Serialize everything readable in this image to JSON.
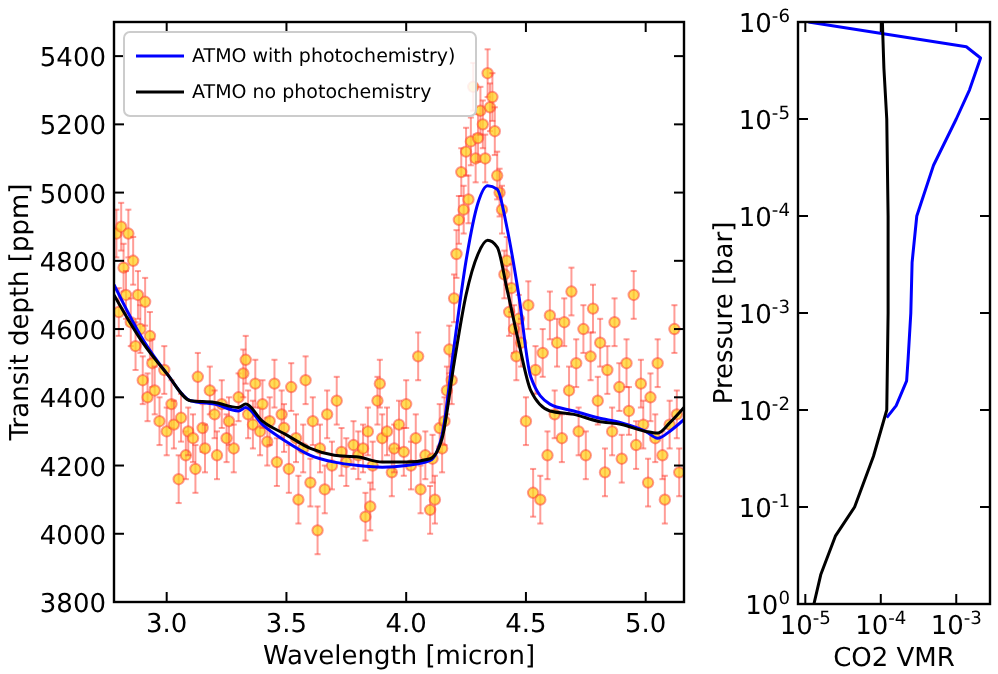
{
  "chart_data": [
    {
      "type": "line",
      "xlabel": "Wavelength [micron]",
      "ylabel": "Transit depth [ppm]",
      "xlim": [
        2.78,
        5.16
      ],
      "ylim": [
        3800,
        5500
      ],
      "xticks": [
        {
          "value": 3,
          "label": "3.0"
        },
        {
          "value": 3.5,
          "label": "3.5"
        },
        {
          "value": 4,
          "label": "4.0"
        },
        {
          "value": 4.5,
          "label": "4.5"
        },
        {
          "value": 5,
          "label": "5.0"
        }
      ],
      "yticks": [
        3800,
        4000,
        4200,
        4400,
        4600,
        4800,
        5000,
        5200,
        5400
      ],
      "grid": false,
      "legend": "top left",
      "line_style": "solid",
      "series": [
        {
          "type": "scatter",
          "color": "#ff3b30",
          "marker": "circle",
          "x": [
            2.79,
            2.8,
            2.81,
            2.82,
            2.83,
            2.84,
            2.85,
            2.86,
            2.87,
            2.88,
            2.89,
            2.9,
            2.91,
            2.92,
            2.93,
            2.94,
            2.95,
            2.97,
            2.99,
            3.0,
            3.02,
            3.03,
            3.05,
            3.06,
            3.08,
            3.09,
            3.11,
            3.12,
            3.13,
            3.15,
            3.16,
            3.18,
            3.2,
            3.21,
            3.23,
            3.25,
            3.26,
            3.28,
            3.3,
            3.32,
            3.33,
            3.34,
            3.36,
            3.37,
            3.39,
            3.4,
            3.42,
            3.43,
            3.45,
            3.46,
            3.48,
            3.49,
            3.51,
            3.52,
            3.54,
            3.55,
            3.57,
            3.58,
            3.6,
            3.61,
            3.63,
            3.64,
            3.66,
            3.67,
            3.69,
            3.71,
            3.73,
            3.75,
            3.78,
            3.8,
            3.82,
            3.83,
            3.84,
            3.85,
            3.86,
            3.88,
            3.89,
            3.9,
            3.92,
            3.94,
            3.95,
            3.97,
            3.99,
            4.0,
            4.02,
            4.04,
            4.05,
            4.06,
            4.08,
            4.1,
            4.11,
            4.12,
            4.14,
            4.15,
            4.16,
            4.17,
            4.18,
            4.19,
            4.2,
            4.21,
            4.22,
            4.23,
            4.24,
            4.25,
            4.26,
            4.27,
            4.28,
            4.29,
            4.3,
            4.31,
            4.32,
            4.33,
            4.34,
            4.35,
            4.36,
            4.37,
            4.38,
            4.39,
            4.4,
            4.41,
            4.42,
            4.43,
            4.44,
            4.45,
            4.46,
            4.47,
            4.48,
            4.5,
            4.51,
            4.53,
            4.54,
            4.56,
            4.57,
            4.59,
            4.6,
            4.62,
            4.63,
            4.65,
            4.66,
            4.68,
            4.69,
            4.71,
            4.72,
            4.74,
            4.75,
            4.77,
            4.78,
            4.8,
            4.81,
            4.83,
            4.84,
            4.86,
            4.87,
            4.89,
            4.9,
            4.92,
            4.93,
            4.95,
            4.96,
            4.98,
            4.99,
            5.01,
            5.02,
            5.04,
            5.05,
            5.07,
            5.08,
            5.1,
            5.12,
            5.13,
            5.14
          ],
          "values": [
            4880,
            4650,
            4900,
            4780,
            4700,
            4880,
            4620,
            4800,
            4550,
            4700,
            4600,
            4450,
            4680,
            4400,
            4580,
            4500,
            4420,
            4330,
            4480,
            4300,
            4380,
            4320,
            4160,
            4340,
            4230,
            4300,
            4280,
            4190,
            4460,
            4310,
            4250,
            4420,
            4350,
            4230,
            4380,
            4280,
            4330,
            4250,
            4400,
            4470,
            4510,
            4350,
            4320,
            4440,
            4300,
            4380,
            4270,
            4330,
            4440,
            4210,
            4350,
            4310,
            4190,
            4430,
            4280,
            4100,
            4250,
            4450,
            4150,
            4330,
            4010,
            4250,
            4130,
            4350,
            4200,
            4390,
            4240,
            4210,
            4260,
            4230,
            4250,
            4050,
            4300,
            4080,
            4200,
            4390,
            4440,
            4280,
            4300,
            4180,
            4250,
            4320,
            4240,
            4380,
            4200,
            4280,
            4520,
            4130,
            4230,
            4070,
            4220,
            4100,
            4310,
            4250,
            4330,
            4420,
            4540,
            4450,
            4690,
            4820,
            4920,
            5060,
            4950,
            5120,
            4980,
            5150,
            5310,
            5100,
            5160,
            5240,
            5200,
            5100,
            5350,
            5250,
            5280,
            5180,
            5050,
            5000,
            4950,
            4760,
            4800,
            4650,
            4720,
            4600,
            4520,
            4630,
            4560,
            4330,
            4670,
            4120,
            4480,
            4100,
            4530,
            4230,
            4640,
            4350,
            4560,
            4280,
            4620,
            4420,
            4710,
            4500,
            4300,
            4600,
            4230,
            4520,
            4660,
            4390,
            4560,
            4180,
            4480,
            4300,
            4620,
            4430,
            4220,
            4500,
            4360,
            4700,
            4260,
            4440,
            4320,
            4150,
            4400,
            4280,
            4500,
            4230,
            4100,
            4320,
            4600,
            4350,
            4180
          ],
          "errors": [
            70,
            70,
            70,
            70,
            70,
            70,
            70,
            70,
            70,
            70,
            70,
            70,
            70,
            70,
            70,
            70,
            70,
            70,
            70,
            70,
            70,
            70,
            70,
            70,
            70,
            70,
            70,
            70,
            70,
            70,
            70,
            70,
            70,
            70,
            70,
            70,
            70,
            70,
            70,
            70,
            70,
            70,
            70,
            70,
            70,
            70,
            70,
            70,
            70,
            70,
            70,
            70,
            70,
            70,
            70,
            70,
            70,
            70,
            70,
            70,
            70,
            70,
            70,
            70,
            70,
            70,
            70,
            70,
            70,
            70,
            70,
            70,
            70,
            70,
            70,
            70,
            70,
            70,
            70,
            70,
            70,
            70,
            70,
            70,
            70,
            70,
            70,
            70,
            70,
            70,
            70,
            70,
            70,
            70,
            70,
            70,
            70,
            70,
            70,
            70,
            70,
            70,
            70,
            70,
            70,
            70,
            70,
            70,
            70,
            70,
            70,
            70,
            70,
            70,
            70,
            70,
            70,
            70,
            70,
            70,
            70,
            70,
            70,
            70,
            70,
            70,
            70,
            70,
            70,
            70,
            70,
            70,
            70,
            70,
            70,
            70,
            70,
            70,
            70,
            70,
            70,
            70,
            70,
            70,
            70,
            70,
            70,
            70,
            70,
            70,
            70,
            70,
            70,
            70,
            70,
            70,
            70,
            70,
            70,
            70,
            70,
            70,
            70,
            70,
            70,
            70,
            70,
            70,
            70,
            70,
            70
          ]
        },
        {
          "name": "ATMO with photochemistry)",
          "color": "#0000ff",
          "x": [
            2.78,
            2.9,
            3.0,
            3.1,
            3.2,
            3.3,
            3.33,
            3.4,
            3.5,
            3.6,
            3.7,
            3.8,
            3.9,
            4.0,
            4.1,
            4.15,
            4.2,
            4.25,
            4.3,
            4.34,
            4.38,
            4.42,
            4.47,
            4.52,
            4.6,
            4.7,
            4.8,
            4.9,
            5.0,
            5.05,
            5.1,
            5.16
          ],
          "values": [
            4730,
            4570,
            4470,
            4390,
            4380,
            4360,
            4370,
            4320,
            4270,
            4230,
            4210,
            4200,
            4195,
            4200,
            4215,
            4290,
            4550,
            4800,
            4970,
            5020,
            5010,
            4900,
            4700,
            4460,
            4380,
            4360,
            4340,
            4325,
            4300,
            4280,
            4300,
            4335
          ]
        },
        {
          "name": "ATMO no photochemistry",
          "color": "#000000",
          "x": [
            2.78,
            2.9,
            3.0,
            3.1,
            3.2,
            3.3,
            3.33,
            3.4,
            3.5,
            3.6,
            3.7,
            3.8,
            3.9,
            4.0,
            4.1,
            4.15,
            4.2,
            4.25,
            4.3,
            4.34,
            4.38,
            4.42,
            4.47,
            4.52,
            4.6,
            4.7,
            4.8,
            4.9,
            5.0,
            5.05,
            5.1,
            5.16
          ],
          "values": [
            4700,
            4560,
            4470,
            4390,
            4385,
            4370,
            4380,
            4330,
            4290,
            4250,
            4230,
            4225,
            4210,
            4210,
            4220,
            4280,
            4500,
            4700,
            4820,
            4860,
            4840,
            4720,
            4560,
            4420,
            4360,
            4350,
            4330,
            4320,
            4300,
            4295,
            4325,
            4370
          ]
        }
      ]
    },
    {
      "type": "line",
      "xlabel": "CO2 VMR",
      "ylabel": "Pressure [bar]",
      "log": "xy",
      "xlim": [
        8e-06,
        0.0028
      ],
      "ylim": [
        1,
        1e-06
      ],
      "grid": false,
      "legend": false,
      "line_style": "solid",
      "xticks": [
        {
          "value": 1e-05,
          "label": "10$^{-5}$"
        },
        {
          "value": 0.0001,
          "label": "10$^{-4}$"
        },
        {
          "value": 0.001,
          "label": "10$^{-3}$"
        }
      ],
      "yticks": [
        {
          "value": 1e-06,
          "label": "10$^{-6}$"
        },
        {
          "value": 1e-05,
          "label": "10$^{-5}$"
        },
        {
          "value": 0.0001,
          "label": "10$^{-4}$"
        },
        {
          "value": 0.001,
          "label": "10$^{-3}$"
        },
        {
          "value": 0.01,
          "label": "10$^{-2}$"
        },
        {
          "value": 0.1,
          "label": "10$^{-1}$"
        },
        {
          "value": 1,
          "label": "10$^{0}$"
        }
      ],
      "series": [
        {
          "color": "#0000ff",
          "x": [
            1.1e-05,
            0.00136,
            0.0021,
            0.0015,
            0.001,
            0.0005,
            0.0003,
            0.00026,
            0.00025,
            0.00023,
            0.00022,
            0.00016,
            0.00012
          ],
          "values": [
            1e-06,
            1.8e-06,
            2.35e-06,
            5e-06,
            1e-05,
            3e-05,
            0.0001,
            0.0003,
            0.001,
            0.003,
            0.005,
            0.009,
            0.012
          ]
        },
        {
          "color": "#000000",
          "x": [
            0.000105,
            0.00011,
            0.00012,
            0.000125,
            0.000125,
            0.00012,
            8e-05,
            4.5e-05,
            2.5e-05,
            1.6e-05,
            1.3e-05
          ],
          "values": [
            1e-06,
            3e-06,
            1e-05,
            0.0001,
            0.001,
            0.01,
            0.03,
            0.1,
            0.2,
            0.5,
            1
          ]
        }
      ]
    }
  ]
}
